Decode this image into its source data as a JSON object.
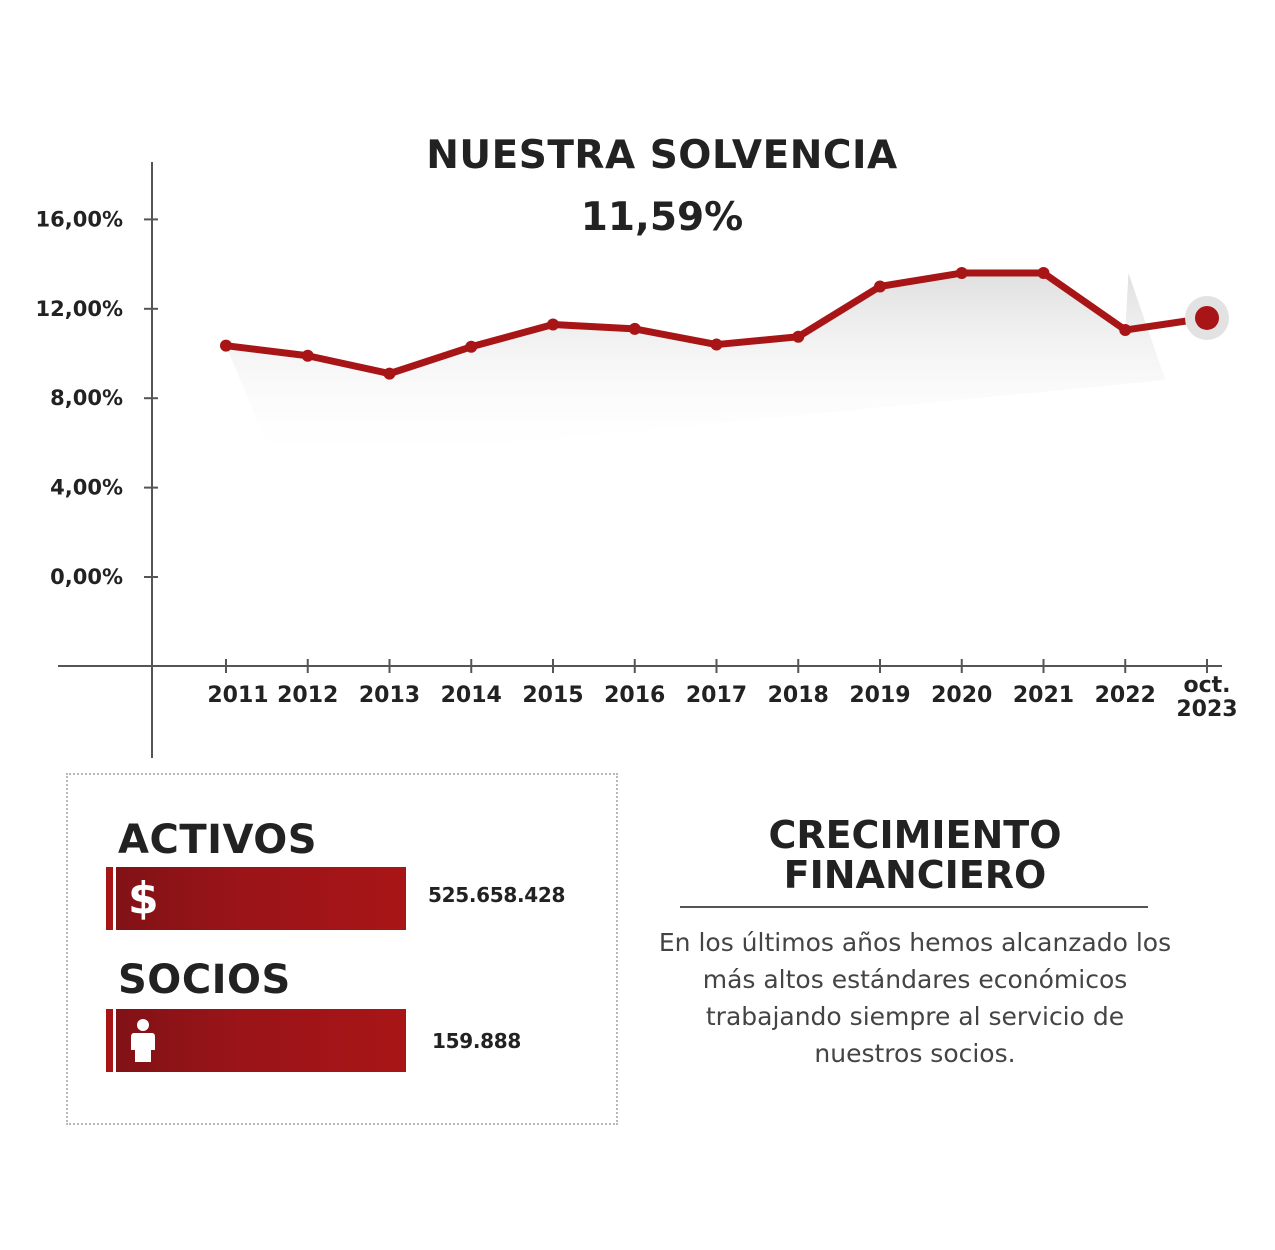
{
  "chart_data": {
    "type": "line",
    "title": "NUESTRA SOLVENCIA",
    "highlight_value": "11,59%",
    "x": [
      "2011",
      "2012",
      "2013",
      "2014",
      "2015",
      "2016",
      "2017",
      "2018",
      "2019",
      "2020",
      "2021",
      "2022",
      "oct. 2023"
    ],
    "x_tick_labels": [
      [
        "2011"
      ],
      [
        "2012"
      ],
      [
        "2013"
      ],
      [
        "2014"
      ],
      [
        "2015"
      ],
      [
        "2016"
      ],
      [
        "2017"
      ],
      [
        "2018"
      ],
      [
        "2019"
      ],
      [
        "2020"
      ],
      [
        "2021"
      ],
      [
        "2022"
      ],
      [
        "oct.",
        "2023"
      ]
    ],
    "series": [
      {
        "values": [
          10.35,
          9.9,
          9.1,
          10.3,
          11.3,
          11.1,
          10.4,
          10.75,
          13.0,
          13.6,
          13.6,
          11.05,
          11.59
        ],
        "color": "#a81517"
      }
    ],
    "yticks": [
      0,
      4,
      8,
      12,
      16
    ],
    "ytick_labels": [
      "0,00%",
      "4,00%",
      "8,00%",
      "12,00%",
      "16,00%"
    ],
    "ylim": [
      -4,
      19
    ],
    "grid": false,
    "xlabel": "",
    "ylabel": ""
  },
  "stats": {
    "activos": {
      "label": "ACTIVOS",
      "value": "525.658.428",
      "icon": "dollar-icon",
      "icon_glyph": "$"
    },
    "socios": {
      "label": "SOCIOS",
      "value": "159.888",
      "icon": "person-icon"
    }
  },
  "growth": {
    "title_line1": "CRECIMIENTO",
    "title_line2": "FINANCIERO",
    "text": "En los últimos años hemos alcanzado los más altos estándares económicos trabajando siempre al servicio de nuestros socios."
  },
  "colors": {
    "accent": "#a81517",
    "axis": "#555555",
    "text": "#222222"
  }
}
